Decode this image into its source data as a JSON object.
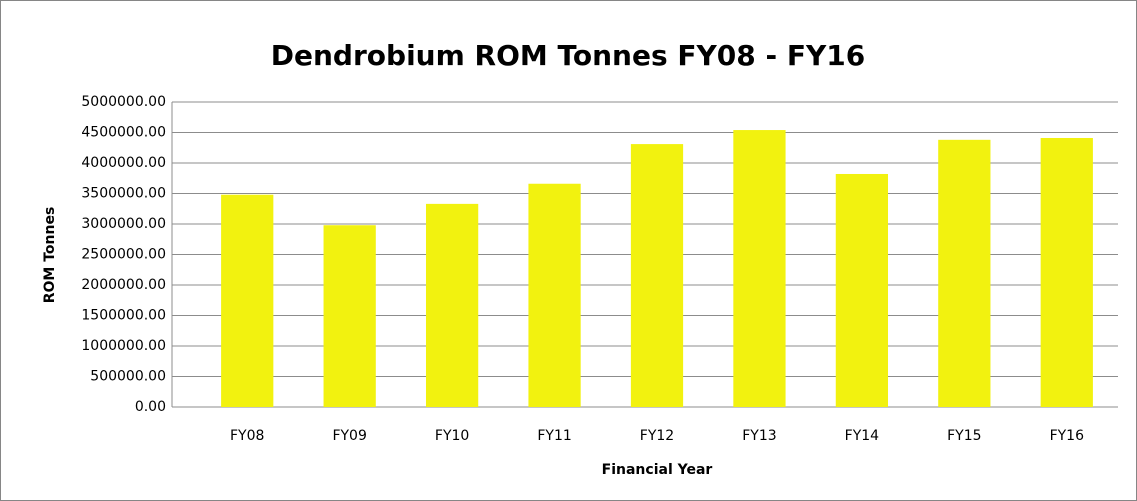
{
  "chart_data": {
    "type": "bar",
    "title": "Dendrobium ROM Tonnes FY08 - FY16",
    "x_label": "Financial Year",
    "y_label": "ROM Tonnes",
    "categories": [
      "FY08",
      "FY09",
      "FY10",
      "FY11",
      "FY12",
      "FY13",
      "FY14",
      "FY15",
      "FY16"
    ],
    "values": [
      3480000,
      2980000,
      3330000,
      3660000,
      4310000,
      4540000,
      3820000,
      4380000,
      4410000
    ],
    "color": "#f2f20f",
    "ylim": [
      0,
      5000000
    ],
    "yticks": [
      {
        "value": 0,
        "label": "0.00"
      },
      {
        "value": 500000,
        "label": "500000.00"
      },
      {
        "value": 1000000,
        "label": "1000000.00"
      },
      {
        "value": 1500000,
        "label": "1500000.00"
      },
      {
        "value": 2000000,
        "label": "2000000.00"
      },
      {
        "value": 2500000,
        "label": "2500000.00"
      },
      {
        "value": 3000000,
        "label": "3000000.00"
      },
      {
        "value": 3500000,
        "label": "3500000.00"
      },
      {
        "value": 4000000,
        "label": "4000000.00"
      },
      {
        "value": 4500000,
        "label": "4500000.00"
      },
      {
        "value": 5000000,
        "label": "5000000.00"
      }
    ],
    "grid": true
  }
}
